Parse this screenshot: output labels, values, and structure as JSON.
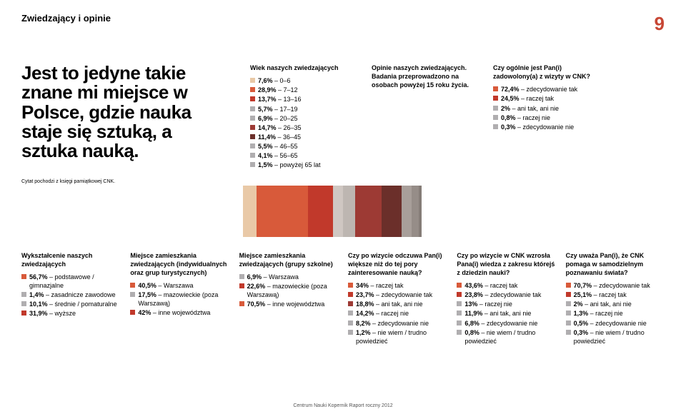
{
  "header": {
    "title": "Zwiedzający i opinie",
    "page_number": "9"
  },
  "quote": "Jest to jedyne takie znane mi miejsce w Polsce, gdzie nauka staje się sztuką, a sztuka nauką.",
  "citation": "Cytat pochodzi z księgi pamiątkowej CNK.",
  "age": {
    "title": "Wiek naszych zwiedzających",
    "items": [
      {
        "pct": "7,6%",
        "label": "0–6",
        "color": "#e9c9a7"
      },
      {
        "pct": "28,9%",
        "label": "7–12",
        "color": "#d85a3a"
      },
      {
        "pct": "13,7%",
        "label": "13–16",
        "color": "#c1392b"
      },
      {
        "pct": "5,7%",
        "label": "17–19",
        "color": "#b0aeb0"
      },
      {
        "pct": "6,9%",
        "label": "20–25",
        "color": "#b0aeb0"
      },
      {
        "pct": "14,7%",
        "label": "26–35",
        "color": "#9d3a34"
      },
      {
        "pct": "11,4%",
        "label": "36–45",
        "color": "#6b2f2a"
      },
      {
        "pct": "5,5%",
        "label": "46–55",
        "color": "#b0aeb0"
      },
      {
        "pct": "4,1%",
        "label": "56–65",
        "color": "#b0aeb0"
      },
      {
        "pct": "1,5%",
        "label": "powyżej 65 lat",
        "color": "#b0aeb0"
      }
    ]
  },
  "opinions_intro": {
    "title": "Opinie naszych zwiedzających. Badania przeprowadzono na osobach powyżej 15 roku życia."
  },
  "satisfaction": {
    "title": "Czy ogólnie jest Pan(i) zadowolony(a) z wizyty w CNK?",
    "items": [
      {
        "pct": "72,4%",
        "label": "zdecydowanie tak",
        "color": "#d85a3a"
      },
      {
        "pct": "24,5%",
        "label": "raczej tak",
        "color": "#c1392b"
      },
      {
        "pct": "2%",
        "label": "ani tak, ani nie",
        "color": "#b0aeb0"
      },
      {
        "pct": "0,8%",
        "label": "raczej nie",
        "color": "#b0aeb0"
      },
      {
        "pct": "0,3%",
        "label": "zdecydowanie nie",
        "color": "#b0aeb0"
      }
    ]
  },
  "chart_strip": {
    "bands": [
      {
        "color": "#e9c9a7",
        "w": 7.6
      },
      {
        "color": "#d85a3a",
        "w": 28.9
      },
      {
        "color": "#c1392b",
        "w": 13.7
      },
      {
        "color": "#cfc7c2",
        "w": 5.7
      },
      {
        "color": "#bdb6b1",
        "w": 6.9
      },
      {
        "color": "#9d3a34",
        "w": 14.7
      },
      {
        "color": "#6b2f2a",
        "w": 11.4
      },
      {
        "color": "#a89f9a",
        "w": 5.5
      },
      {
        "color": "#968d88",
        "w": 4.1
      },
      {
        "color": "#857c77",
        "w": 1.5
      }
    ]
  },
  "education": {
    "title": "Wykształcenie naszych zwiedzających",
    "items": [
      {
        "pct": "56,7%",
        "label": "podstawowe / gimnazjalne",
        "color": "#d85a3a"
      },
      {
        "pct": "1,4%",
        "label": "zasadnicze zawodowe",
        "color": "#b0aeb0"
      },
      {
        "pct": "10,1%",
        "label": "średnie / pomaturalne",
        "color": "#b0aeb0"
      },
      {
        "pct": "31,9%",
        "label": "wyższe",
        "color": "#c1392b"
      }
    ]
  },
  "residence_indiv": {
    "title": "Miejsce zamieszkania zwiedzających (indywidualnych oraz grup turystycznych)",
    "items": [
      {
        "pct": "40,5%",
        "label": "Warszawa",
        "color": "#d85a3a"
      },
      {
        "pct": "17,5%",
        "label": "mazowieckie (poza Warszawą)",
        "color": "#b0aeb0"
      },
      {
        "pct": "42%",
        "label": "inne województwa",
        "color": "#c1392b"
      }
    ]
  },
  "residence_school": {
    "title": "Miejsce zamieszkania zwiedzających (grupy szkolne)",
    "items": [
      {
        "pct": "6,9%",
        "label": "Warszawa",
        "color": "#b0aeb0"
      },
      {
        "pct": "22,6%",
        "label": "mazowieckie (poza Warszawą)",
        "color": "#c1392b"
      },
      {
        "pct": "70,5%",
        "label": "inne województwa",
        "color": "#d85a3a"
      }
    ]
  },
  "interest": {
    "title": "Czy po wizycie odczuwa Pan(i) większe niż do tej pory zainteresowanie nauką?",
    "items": [
      {
        "pct": "34%",
        "label": "raczej tak",
        "color": "#d85a3a"
      },
      {
        "pct": "23,7%",
        "label": "zdecydowanie tak",
        "color": "#c1392b"
      },
      {
        "pct": "18,8%",
        "label": "ani tak, ani nie",
        "color": "#9d3a34"
      },
      {
        "pct": "14,2%",
        "label": "raczej nie",
        "color": "#b0aeb0"
      },
      {
        "pct": "8,2%",
        "label": "zdecydowanie nie",
        "color": "#b0aeb0"
      },
      {
        "pct": "1,2%",
        "label": "nie wiem / trudno powiedzieć",
        "color": "#b0aeb0"
      }
    ]
  },
  "knowledge": {
    "title": "Czy po wizycie w CNK wzrosła Pana(i) wiedza z zakresu którejś z dziedzin nauki?",
    "items": [
      {
        "pct": "43,6%",
        "label": "raczej tak",
        "color": "#d85a3a"
      },
      {
        "pct": "23,8%",
        "label": "zdecydowanie tak",
        "color": "#c1392b"
      },
      {
        "pct": "13%",
        "label": "raczej nie",
        "color": "#b0aeb0"
      },
      {
        "pct": "11,9%",
        "label": "ani tak, ani nie",
        "color": "#b0aeb0"
      },
      {
        "pct": "6,8%",
        "label": "zdecydowanie nie",
        "color": "#b0aeb0"
      },
      {
        "pct": "0,8%",
        "label": "nie wiem / trudno powiedzieć",
        "color": "#b0aeb0"
      }
    ]
  },
  "selflearn": {
    "title": "Czy uważa Pan(i), że CNK pomaga w samodzielnym poznawaniu świata?",
    "items": [
      {
        "pct": "70,7%",
        "label": "zdecydowanie tak",
        "color": "#d85a3a"
      },
      {
        "pct": "25,1%",
        "label": "raczej tak",
        "color": "#c1392b"
      },
      {
        "pct": "2%",
        "label": "ani tak, ani nie",
        "color": "#b0aeb0"
      },
      {
        "pct": "1,3%",
        "label": "raczej nie",
        "color": "#b0aeb0"
      },
      {
        "pct": "0,5%",
        "label": "zdecydowanie nie",
        "color": "#b0aeb0"
      },
      {
        "pct": "0,3%",
        "label": "nie wiem / trudno powiedzieć",
        "color": "#b0aeb0"
      }
    ]
  },
  "footer": "Centrum Nauki Kopernik    Raport roczny 2012"
}
